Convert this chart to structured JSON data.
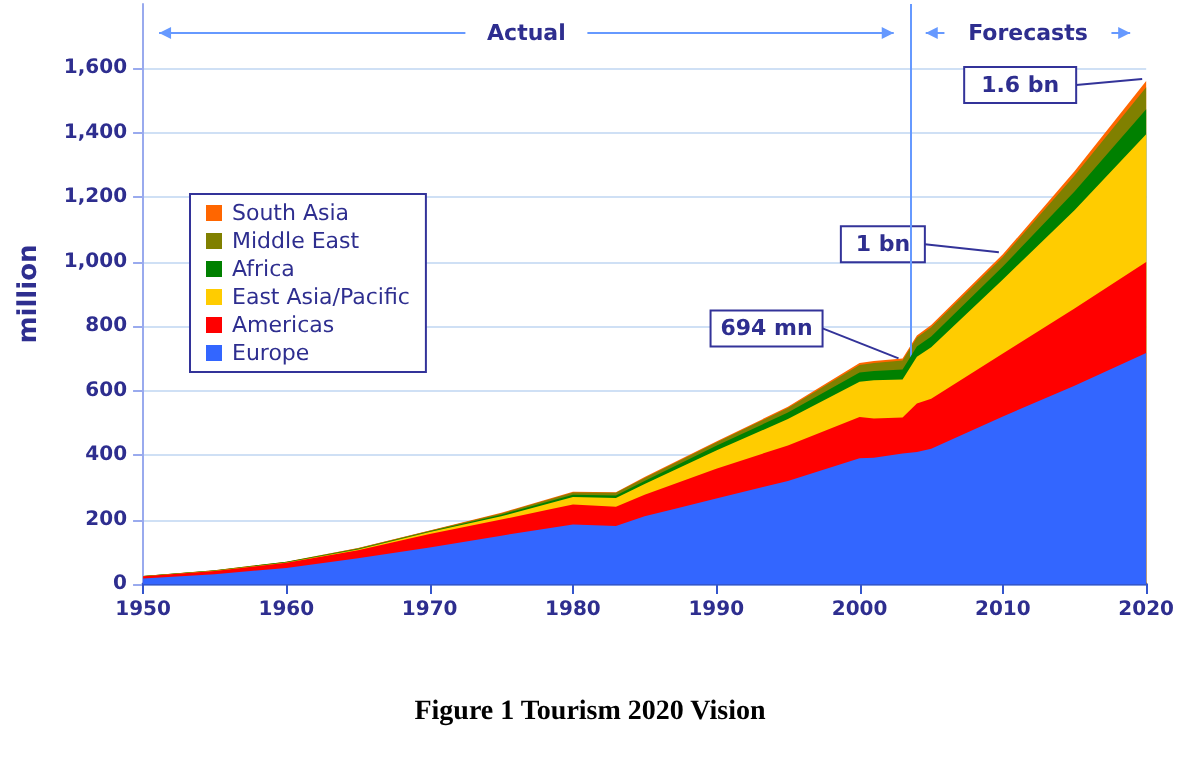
{
  "chart_data": {
    "type": "area",
    "stacked": true,
    "title": "Figure 1 Tourism 2020 Vision",
    "ylabel": "million",
    "x": [
      1950,
      1955,
      1960,
      1965,
      1970,
      1975,
      1980,
      1983,
      1985,
      1990,
      1995,
      2000,
      2001,
      2003,
      2004,
      2005,
      2010,
      2015,
      2020
    ],
    "series": [
      {
        "name": "Europe",
        "color": "#3366ff",
        "values": [
          17,
          30,
          50,
          80,
          113,
          150,
          185,
          180,
          210,
          265,
          320,
          390,
          392,
          405,
          410,
          420,
          520,
          615,
          717
        ]
      },
      {
        "name": "Americas",
        "color": "#ff0000",
        "values": [
          7,
          10,
          16,
          25,
          42,
          50,
          62,
          60,
          67,
          93,
          110,
          128,
          122,
          112,
          150,
          155,
          195,
          240,
          282
        ]
      },
      {
        "name": "East Asia/Pacific",
        "color": "#ffcc00",
        "values": [
          0,
          1,
          1,
          2,
          6,
          10,
          23,
          27,
          33,
          56,
          82,
          110,
          118,
          118,
          145,
          160,
          230,
          305,
          397
        ]
      },
      {
        "name": "Africa",
        "color": "#008000",
        "values": [
          1,
          1,
          1,
          2,
          2,
          5,
          7,
          8,
          10,
          15,
          20,
          28,
          29,
          31,
          32,
          33,
          40,
          58,
          77
        ]
      },
      {
        "name": "Middle East",
        "color": "#808000",
        "values": [
          0,
          1,
          1,
          2,
          2,
          4,
          7,
          8,
          9,
          10,
          14,
          24,
          25,
          28,
          28,
          29,
          30,
          50,
          69
        ]
      },
      {
        "name": "South Asia",
        "color": "#ff6600",
        "values": [
          0,
          0,
          0,
          1,
          1,
          2,
          2,
          2,
          3,
          3,
          4,
          6,
          6,
          6,
          6,
          7,
          8,
          13,
          19
        ]
      }
    ],
    "xlim": [
      1950,
      2020
    ],
    "xticks": [
      1950,
      1960,
      1970,
      1980,
      1990,
      2000,
      2010,
      2020
    ],
    "ylim": [
      0,
      1800
    ],
    "yticks": [
      0,
      200,
      400,
      600,
      800,
      {
        "value": 1000,
        "label": "1,000"
      },
      {
        "value": 1200,
        "label": "1,200"
      },
      {
        "value": 1400,
        "label": "1,400"
      },
      {
        "value": 1600,
        "label": "1,600"
      }
    ],
    "grid": "y",
    "legend": "top left",
    "ref_lines": [
      {
        "axis": "x",
        "value": 2003.5,
        "color": "#6699ff"
      }
    ],
    "annotations": [
      "Actual",
      "Forecasts",
      {
        "text": "694 mn",
        "x": 2003,
        "y": 694
      },
      {
        "text": "1 bn",
        "x": 2010,
        "y": 1023
      },
      {
        "text": "1.6 bn",
        "x": 2020,
        "y": 1561
      }
    ]
  }
}
